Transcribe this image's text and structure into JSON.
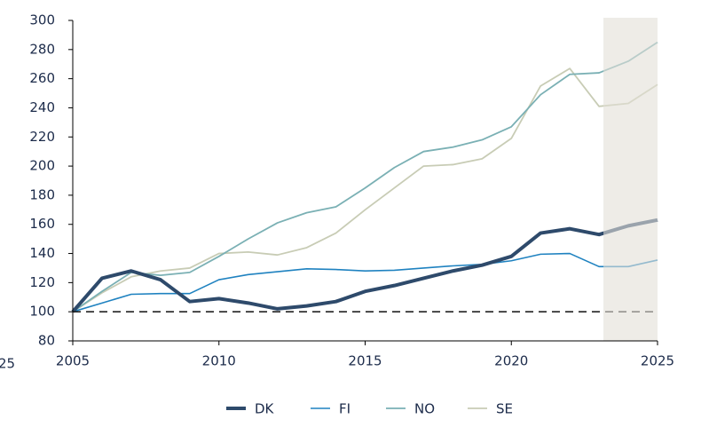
{
  "chart_data": {
    "type": "line",
    "x": [
      2005,
      2006,
      2007,
      2008,
      2009,
      2010,
      2011,
      2012,
      2013,
      2014,
      2015,
      2016,
      2017,
      2018,
      2019,
      2020,
      2021,
      2022,
      2023,
      2024,
      2025
    ],
    "series": [
      {
        "name": "DK",
        "color": "#2e4a6b",
        "width": 4,
        "values": [
          100,
          123,
          128,
          122,
          107,
          109,
          106,
          102,
          104,
          107,
          114,
          118,
          123,
          128,
          132,
          138,
          154,
          157,
          153,
          159,
          163
        ]
      },
      {
        "name": "FI",
        "color": "#1f82c0",
        "width": 1.6,
        "values": [
          100,
          106,
          112,
          112.5,
          112.5,
          122,
          125.5,
          127.5,
          129.5,
          129,
          128,
          128.5,
          130,
          131.5,
          132.5,
          135,
          139.5,
          140,
          131,
          131,
          135.5
        ]
      },
      {
        "name": "NO",
        "color": "#7ab0b4",
        "width": 1.8,
        "values": [
          100,
          114,
          127,
          125,
          127,
          138,
          150,
          161,
          168,
          172,
          185,
          199,
          210,
          213,
          218,
          227,
          249,
          263,
          264,
          272,
          285
        ]
      },
      {
        "name": "SE",
        "color": "#c8ccb5",
        "width": 1.8,
        "values": [
          100,
          113,
          124,
          128,
          130,
          140,
          141,
          139,
          144,
          154,
          170,
          185,
          200,
          201,
          205,
          219,
          255,
          267,
          241,
          243,
          256
        ]
      }
    ],
    "xlim": [
      2005,
      2025
    ],
    "xticks": [
      2005,
      2010,
      2015,
      2020,
      2025
    ],
    "ylim": [
      80,
      300
    ],
    "yticks": [
      80,
      100,
      120,
      140,
      160,
      180,
      200,
      220,
      240,
      260,
      280,
      300
    ],
    "reference_line": 100,
    "shaded_xrange": [
      2023.15,
      2025
    ],
    "shade_color": "#e3e0d7",
    "annotations": [
      "25"
    ],
    "legend": "bottom"
  }
}
